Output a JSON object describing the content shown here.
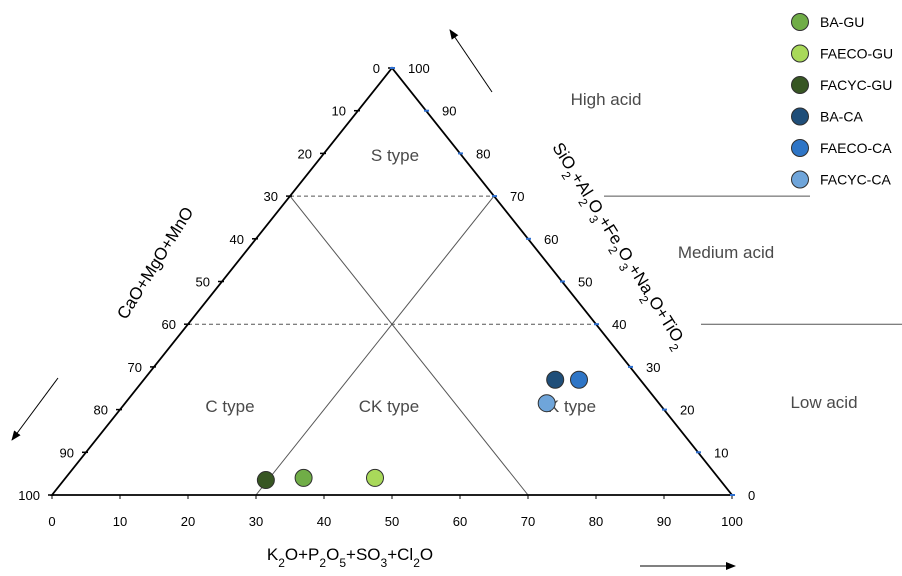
{
  "chart_data": {
    "type": "scatter",
    "title": "",
    "axes": {
      "bottom": {
        "label_parts": [
          {
            "t": "K"
          },
          {
            "t": "2",
            "sub": true
          },
          {
            "t": "O+P"
          },
          {
            "t": "2",
            "sub": true
          },
          {
            "t": "O"
          },
          {
            "t": "5",
            "sub": true
          },
          {
            "t": "+SO"
          },
          {
            "t": "3",
            "sub": true
          },
          {
            "t": "+Cl"
          },
          {
            "t": "2",
            "sub": true
          },
          {
            "t": "O"
          }
        ],
        "ticks": [
          "0",
          "10",
          "20",
          "30",
          "40",
          "50",
          "60",
          "70",
          "80",
          "90",
          "100"
        ]
      },
      "left": {
        "label_parts": [
          {
            "t": "CaO+MgO+MnO"
          }
        ],
        "ticks": [
          "0",
          "10",
          "20",
          "30",
          "40",
          "50",
          "60",
          "70",
          "80",
          "90",
          "100"
        ]
      },
      "right": {
        "label_parts": [
          {
            "t": "SiO"
          },
          {
            "t": "2",
            "sub": true
          },
          {
            "t": "+Al"
          },
          {
            "t": "2",
            "sub": true
          },
          {
            "t": "O"
          },
          {
            "t": "3",
            "sub": true
          },
          {
            "t": "+Fe"
          },
          {
            "t": "2",
            "sub": true
          },
          {
            "t": "O"
          },
          {
            "t": "3",
            "sub": true
          },
          {
            "t": "+Na"
          },
          {
            "t": "2",
            "sub": true
          },
          {
            "t": "O+TiO"
          },
          {
            "t": "2",
            "sub": true
          }
        ],
        "ticks": [
          "0",
          "10",
          "20",
          "30",
          "40",
          "50",
          "60",
          "70",
          "80",
          "90",
          "100"
        ]
      }
    },
    "regions": [
      {
        "name": "S type"
      },
      {
        "name": "C type"
      },
      {
        "name": "CK type"
      },
      {
        "name": "K type"
      }
    ],
    "acid_levels": [
      "High acid",
      "Medium acid",
      "Low acid"
    ],
    "boundaries": {
      "acidic_oxides": [
        70,
        40
      ],
      "divider_lines": [
        {
          "bottom_value": 30,
          "left_value": 30
        },
        {
          "bottom_value": 70,
          "right_value": 70
        }
      ]
    },
    "legend_position": "top-right",
    "series": [
      {
        "name": "BA-GU",
        "color": "#70ad47",
        "points": [
          {
            "x": 35,
            "acid": 4
          }
        ]
      },
      {
        "name": "FAECO-GU",
        "color": "#a9d95a",
        "points": [
          {
            "x": 45.5,
            "acid": 4
          }
        ]
      },
      {
        "name": "FACYC-GU",
        "color": "#375623",
        "points": [
          {
            "x": 29.7,
            "acid": 3.5
          }
        ]
      },
      {
        "name": "BA-CA",
        "color": "#1f4e79",
        "points": [
          {
            "x": 60.5,
            "acid": 27
          }
        ]
      },
      {
        "name": "FAECO-CA",
        "color": "#2e75c6",
        "points": [
          {
            "x": 64,
            "acid": 27
          }
        ]
      },
      {
        "name": "FACYC-CA",
        "color": "#6fa5da",
        "points": [
          {
            "x": 62,
            "acid": 21.5
          }
        ]
      }
    ]
  }
}
